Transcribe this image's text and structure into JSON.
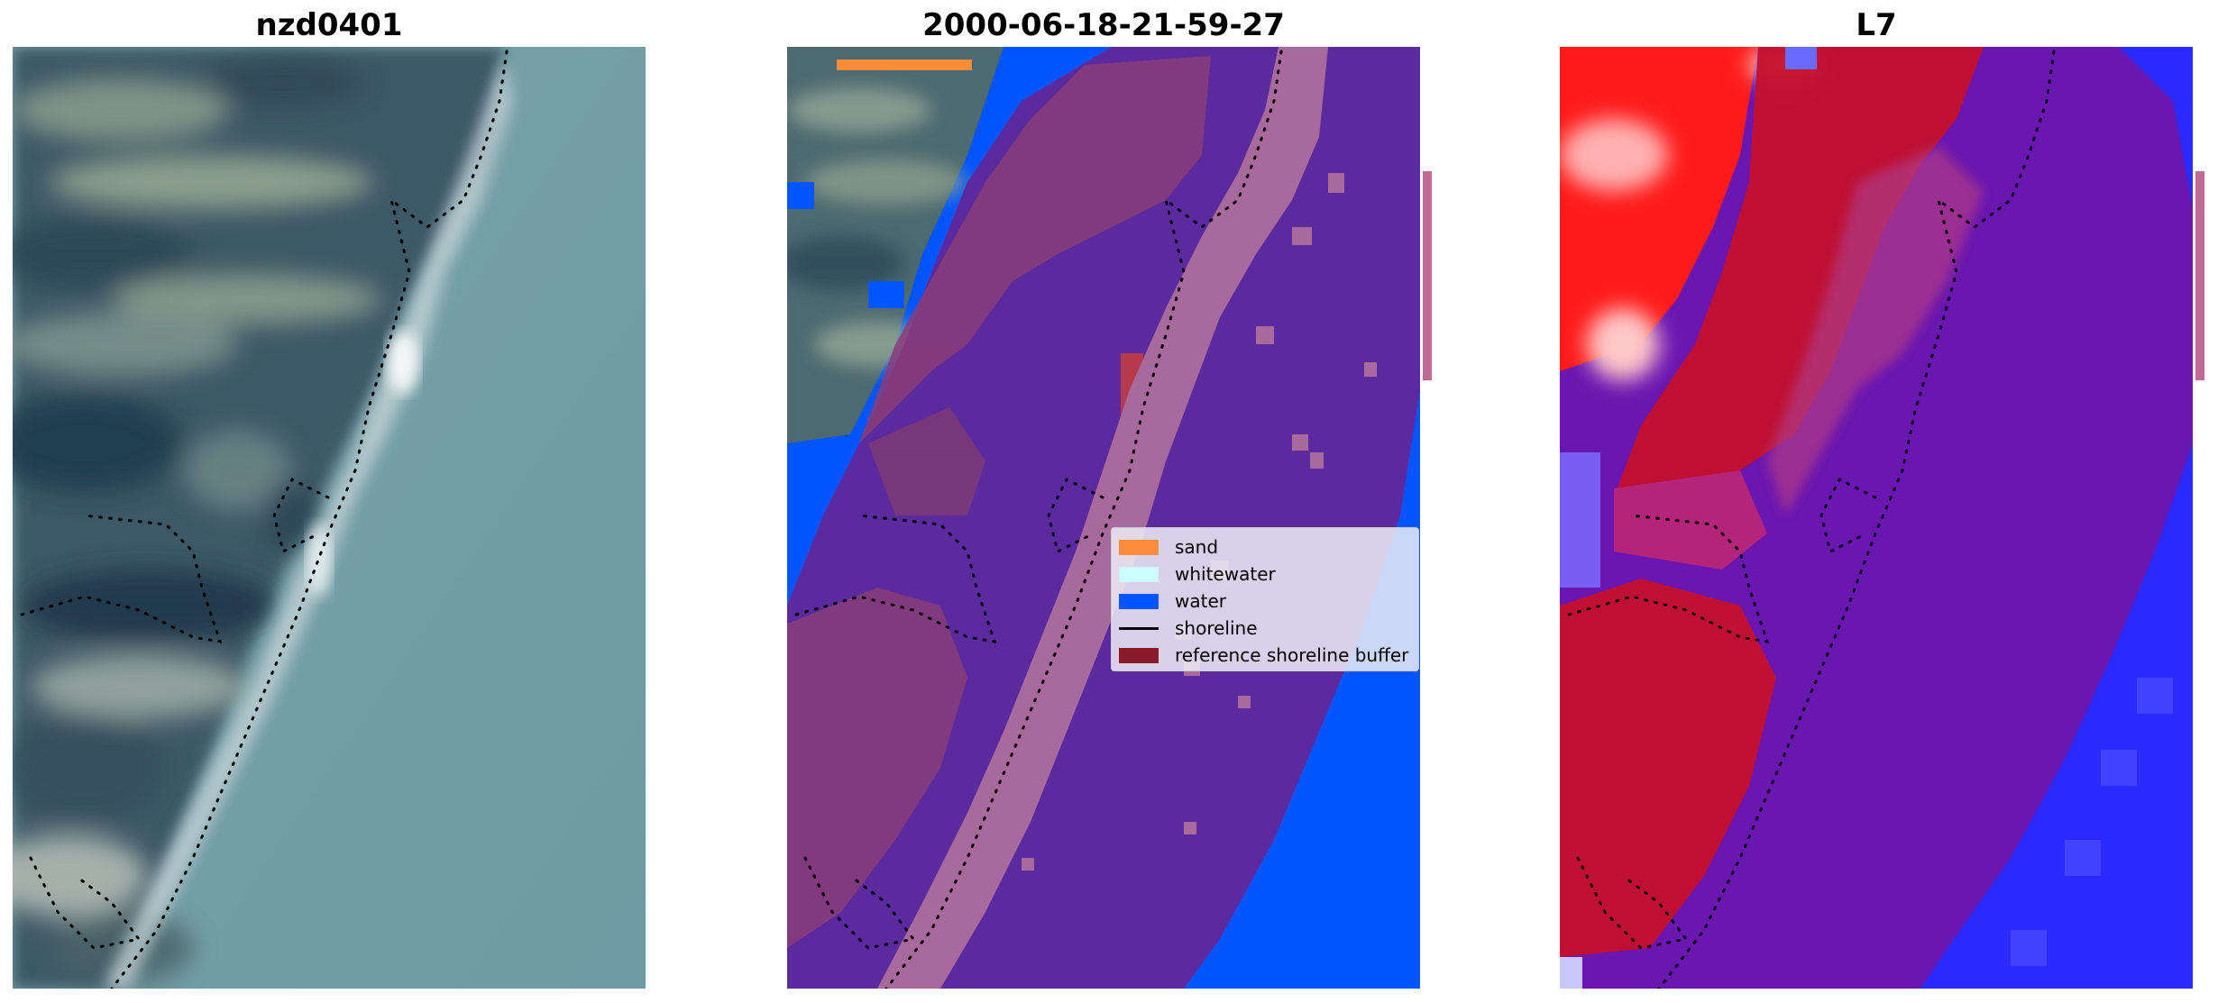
{
  "panels": [
    {
      "title": "nzd0401"
    },
    {
      "title": "2000-06-18-21-59-27"
    },
    {
      "title": "L7"
    }
  ],
  "legend": [
    {
      "label": "sand",
      "color": "#ff8c3a",
      "kind": "patch"
    },
    {
      "label": "whitewater",
      "color": "#ccffff",
      "kind": "patch"
    },
    {
      "label": "water",
      "color": "#0055ff",
      "kind": "patch"
    },
    {
      "label": "shoreline",
      "color": "#000000",
      "kind": "line"
    },
    {
      "label": "reference shoreline buffer",
      "color": "#8b1a2a",
      "kind": "patch"
    }
  ],
  "colors": {
    "water": "#0055ff",
    "buffer_overlay": "#5b2a9e",
    "sand_strip": "#a86a9c",
    "land_rgb": "#4f6b73",
    "sea_rgb": "#6f9aa2",
    "index_positive": "#ff1a1a",
    "index_negative": "#2a2aff"
  }
}
